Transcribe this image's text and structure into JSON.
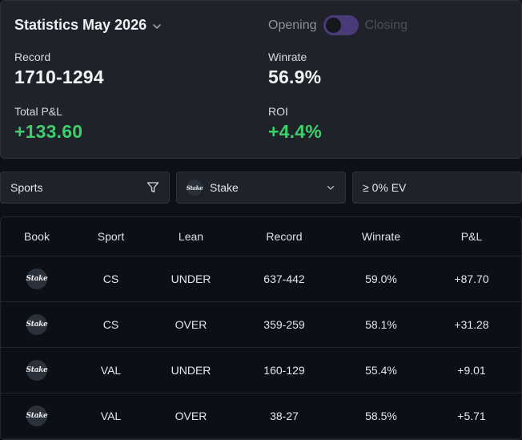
{
  "stats": {
    "title": "Statistics May 2026",
    "toggle": {
      "left_label": "Opening",
      "right_label": "Closing"
    },
    "record_label": "Record",
    "record_value": "1710-1294",
    "winrate_label": "Winrate",
    "winrate_value": "56.9%",
    "pl_label": "Total P&L",
    "pl_value": "+133.60",
    "roi_label": "ROI",
    "roi_value": "+4.4%"
  },
  "filters": {
    "sports_label": "Sports",
    "book_label": "Stake",
    "book_logo": "Stake",
    "ev_label": "≥ 0% EV"
  },
  "table": {
    "headers": {
      "book": "Book",
      "sport": "Sport",
      "lean": "Lean",
      "record": "Record",
      "winrate": "Winrate",
      "pl": "P&L"
    },
    "rows": [
      {
        "book": "Stake",
        "sport": "CS",
        "lean": "UNDER",
        "record": "637-442",
        "winrate": "59.0%",
        "pl": "+87.70"
      },
      {
        "book": "Stake",
        "sport": "CS",
        "lean": "OVER",
        "record": "359-259",
        "winrate": "58.1%",
        "pl": "+31.28"
      },
      {
        "book": "Stake",
        "sport": "VAL",
        "lean": "UNDER",
        "record": "160-129",
        "winrate": "55.4%",
        "pl": "+9.01"
      },
      {
        "book": "Stake",
        "sport": "VAL",
        "lean": "OVER",
        "record": "38-27",
        "winrate": "58.5%",
        "pl": "+5.71"
      }
    ]
  },
  "colors": {
    "positive": "#3ecf6c",
    "negative": "#ef5b5b",
    "toggle_track": "#4b3a78"
  }
}
